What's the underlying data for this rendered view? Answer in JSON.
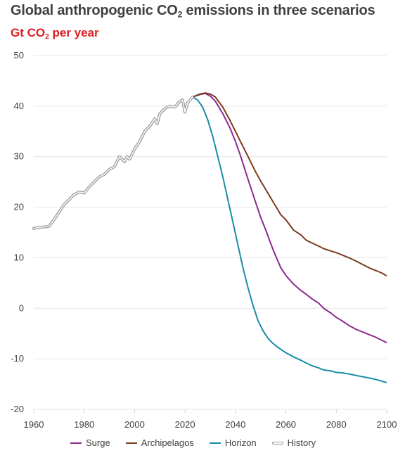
{
  "header": {
    "title_main": "Global anthropogenic CO",
    "title_sub": "2",
    "title_rest": " emissions in three scenarios",
    "subtitle_main": "Gt CO",
    "subtitle_sub": "2",
    "subtitle_rest": " per year"
  },
  "chart_data": {
    "type": "line",
    "title": "Global anthropogenic CO2 emissions in three scenarios",
    "subtitle": "Gt CO2 per year",
    "xlabel": "",
    "ylabel": "",
    "xlim": [
      1960,
      2100
    ],
    "ylim": [
      -20,
      50
    ],
    "x_ticks": [
      1960,
      1980,
      2000,
      2020,
      2040,
      2060,
      2080,
      2100
    ],
    "y_ticks": [
      50,
      40,
      30,
      20,
      10,
      0,
      -10,
      -20
    ],
    "grid": "horizontal",
    "legend_position": "bottom",
    "series": [
      {
        "name": "Surge",
        "color": "#8b2a8f",
        "x": [
          2023,
          2026,
          2028,
          2030,
          2032,
          2035,
          2038,
          2040,
          2042,
          2045,
          2048,
          2050,
          2052,
          2055,
          2058,
          2060,
          2063,
          2066,
          2068,
          2070,
          2073,
          2075,
          2078,
          2080,
          2082,
          2085,
          2088,
          2090,
          2093,
          2095,
          2098,
          2100
        ],
        "y": [
          41.8,
          42.3,
          42.5,
          42.0,
          41.0,
          38.5,
          35.5,
          33.0,
          30.2,
          25.5,
          21.0,
          18.0,
          15.5,
          11.5,
          8.0,
          6.5,
          4.8,
          3.5,
          2.8,
          2.0,
          1.0,
          0.0,
          -1.0,
          -1.8,
          -2.4,
          -3.4,
          -4.2,
          -4.6,
          -5.2,
          -5.6,
          -6.3,
          -6.8
        ]
      },
      {
        "name": "Archipelagos",
        "color": "#7a3b1c",
        "x": [
          2023,
          2026,
          2028,
          2030,
          2032,
          2035,
          2038,
          2040,
          2042,
          2045,
          2048,
          2050,
          2052,
          2055,
          2058,
          2060,
          2063,
          2066,
          2068,
          2070,
          2073,
          2075,
          2078,
          2080,
          2082,
          2085,
          2088,
          2090,
          2093,
          2095,
          2098,
          2100
        ],
        "y": [
          41.8,
          42.4,
          42.6,
          42.4,
          41.8,
          39.8,
          37.0,
          35.0,
          33.0,
          30.0,
          27.0,
          25.2,
          23.5,
          21.0,
          18.5,
          17.5,
          15.5,
          14.5,
          13.5,
          13.0,
          12.3,
          11.8,
          11.3,
          11.0,
          10.6,
          10.0,
          9.3,
          8.8,
          8.0,
          7.6,
          7.0,
          6.4
        ]
      },
      {
        "name": "Horizon",
        "color": "#1a8ca6",
        "x": [
          2023,
          2025,
          2027,
          2029,
          2031,
          2033,
          2035,
          2037,
          2039,
          2041,
          2043,
          2045,
          2047,
          2049,
          2051,
          2053,
          2055,
          2057,
          2060,
          2063,
          2066,
          2070,
          2073,
          2075,
          2078,
          2080,
          2083,
          2085,
          2088,
          2090,
          2093,
          2095,
          2098,
          2100
        ],
        "y": [
          41.8,
          41.2,
          39.8,
          37.3,
          34.0,
          30.0,
          26.0,
          21.5,
          17.0,
          12.5,
          8.0,
          4.0,
          0.5,
          -2.5,
          -4.5,
          -6.0,
          -7.0,
          -7.8,
          -8.8,
          -9.6,
          -10.3,
          -11.3,
          -11.8,
          -12.2,
          -12.4,
          -12.7,
          -12.8,
          -13.0,
          -13.3,
          -13.5,
          -13.8,
          -14.0,
          -14.4,
          -14.7
        ]
      },
      {
        "name": "History",
        "color": "#9a9a9a",
        "x": [
          1960,
          1962,
          1964,
          1966,
          1968,
          1970,
          1972,
          1974,
          1976,
          1978,
          1980,
          1982,
          1984,
          1986,
          1988,
          1990,
          1992,
          1994,
          1996,
          1997,
          1998,
          2000,
          2002,
          2004,
          2006,
          2008,
          2009,
          2010,
          2012,
          2014,
          2016,
          2018,
          2019,
          2020,
          2021,
          2023
        ],
        "y": [
          15.8,
          16.0,
          16.1,
          16.2,
          17.5,
          19.0,
          20.5,
          21.5,
          22.5,
          23.0,
          22.8,
          24.0,
          25.0,
          26.0,
          26.5,
          27.5,
          28.0,
          30.0,
          29.0,
          30.0,
          29.5,
          31.5,
          33.0,
          35.0,
          36.0,
          37.5,
          36.5,
          38.5,
          39.5,
          40.0,
          39.8,
          41.0,
          41.2,
          38.8,
          40.6,
          41.8
        ]
      }
    ]
  }
}
